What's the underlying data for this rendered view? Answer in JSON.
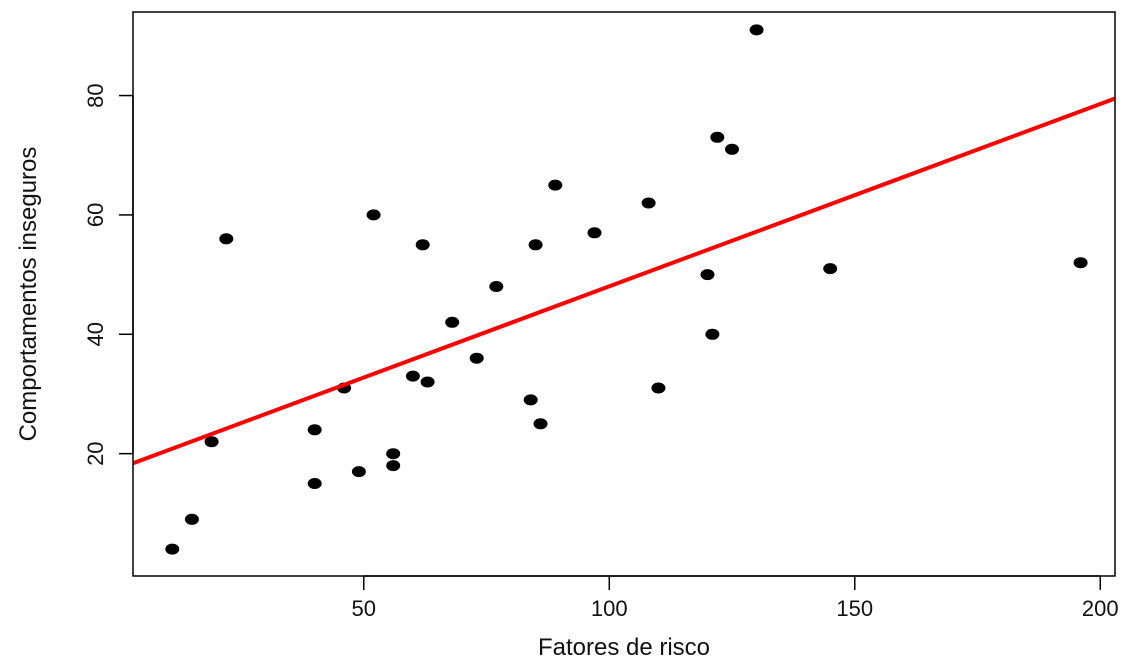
{
  "chart_data": {
    "type": "scatter",
    "title": "",
    "xlabel": "Fatores de risco",
    "ylabel": "Comportamentos inseguros",
    "xlim": [
      3,
      203
    ],
    "ylim": [
      -0.5,
      94
    ],
    "x_ticks": [
      50,
      100,
      150,
      200
    ],
    "y_ticks": [
      20,
      40,
      60,
      80
    ],
    "x_tick_labels": [
      "50",
      "100",
      "150",
      "200"
    ],
    "y_tick_labels": [
      "20",
      "40",
      "60",
      "80"
    ],
    "grid": false,
    "legend": "none",
    "point_color": "#000000",
    "line_color": "#ff0000",
    "points": [
      {
        "x": 11,
        "y": 4
      },
      {
        "x": 15,
        "y": 9
      },
      {
        "x": 19,
        "y": 22
      },
      {
        "x": 22,
        "y": 56
      },
      {
        "x": 40,
        "y": 24
      },
      {
        "x": 40,
        "y": 15
      },
      {
        "x": 46,
        "y": 31
      },
      {
        "x": 49,
        "y": 17
      },
      {
        "x": 52,
        "y": 60
      },
      {
        "x": 56,
        "y": 20
      },
      {
        "x": 56,
        "y": 18
      },
      {
        "x": 60,
        "y": 33
      },
      {
        "x": 62,
        "y": 55
      },
      {
        "x": 63,
        "y": 32
      },
      {
        "x": 68,
        "y": 42
      },
      {
        "x": 73,
        "y": 36
      },
      {
        "x": 77,
        "y": 48
      },
      {
        "x": 84,
        "y": 29
      },
      {
        "x": 85,
        "y": 55
      },
      {
        "x": 86,
        "y": 25
      },
      {
        "x": 89,
        "y": 65
      },
      {
        "x": 97,
        "y": 57
      },
      {
        "x": 108,
        "y": 62
      },
      {
        "x": 110,
        "y": 31
      },
      {
        "x": 120,
        "y": 50
      },
      {
        "x": 121,
        "y": 40
      },
      {
        "x": 122,
        "y": 73
      },
      {
        "x": 125,
        "y": 71
      },
      {
        "x": 130,
        "y": 91
      },
      {
        "x": 145,
        "y": 51
      },
      {
        "x": 196,
        "y": 52
      }
    ],
    "regression_line": {
      "x": [
        3,
        203
      ],
      "y": [
        18.4,
        79.5
      ]
    }
  }
}
